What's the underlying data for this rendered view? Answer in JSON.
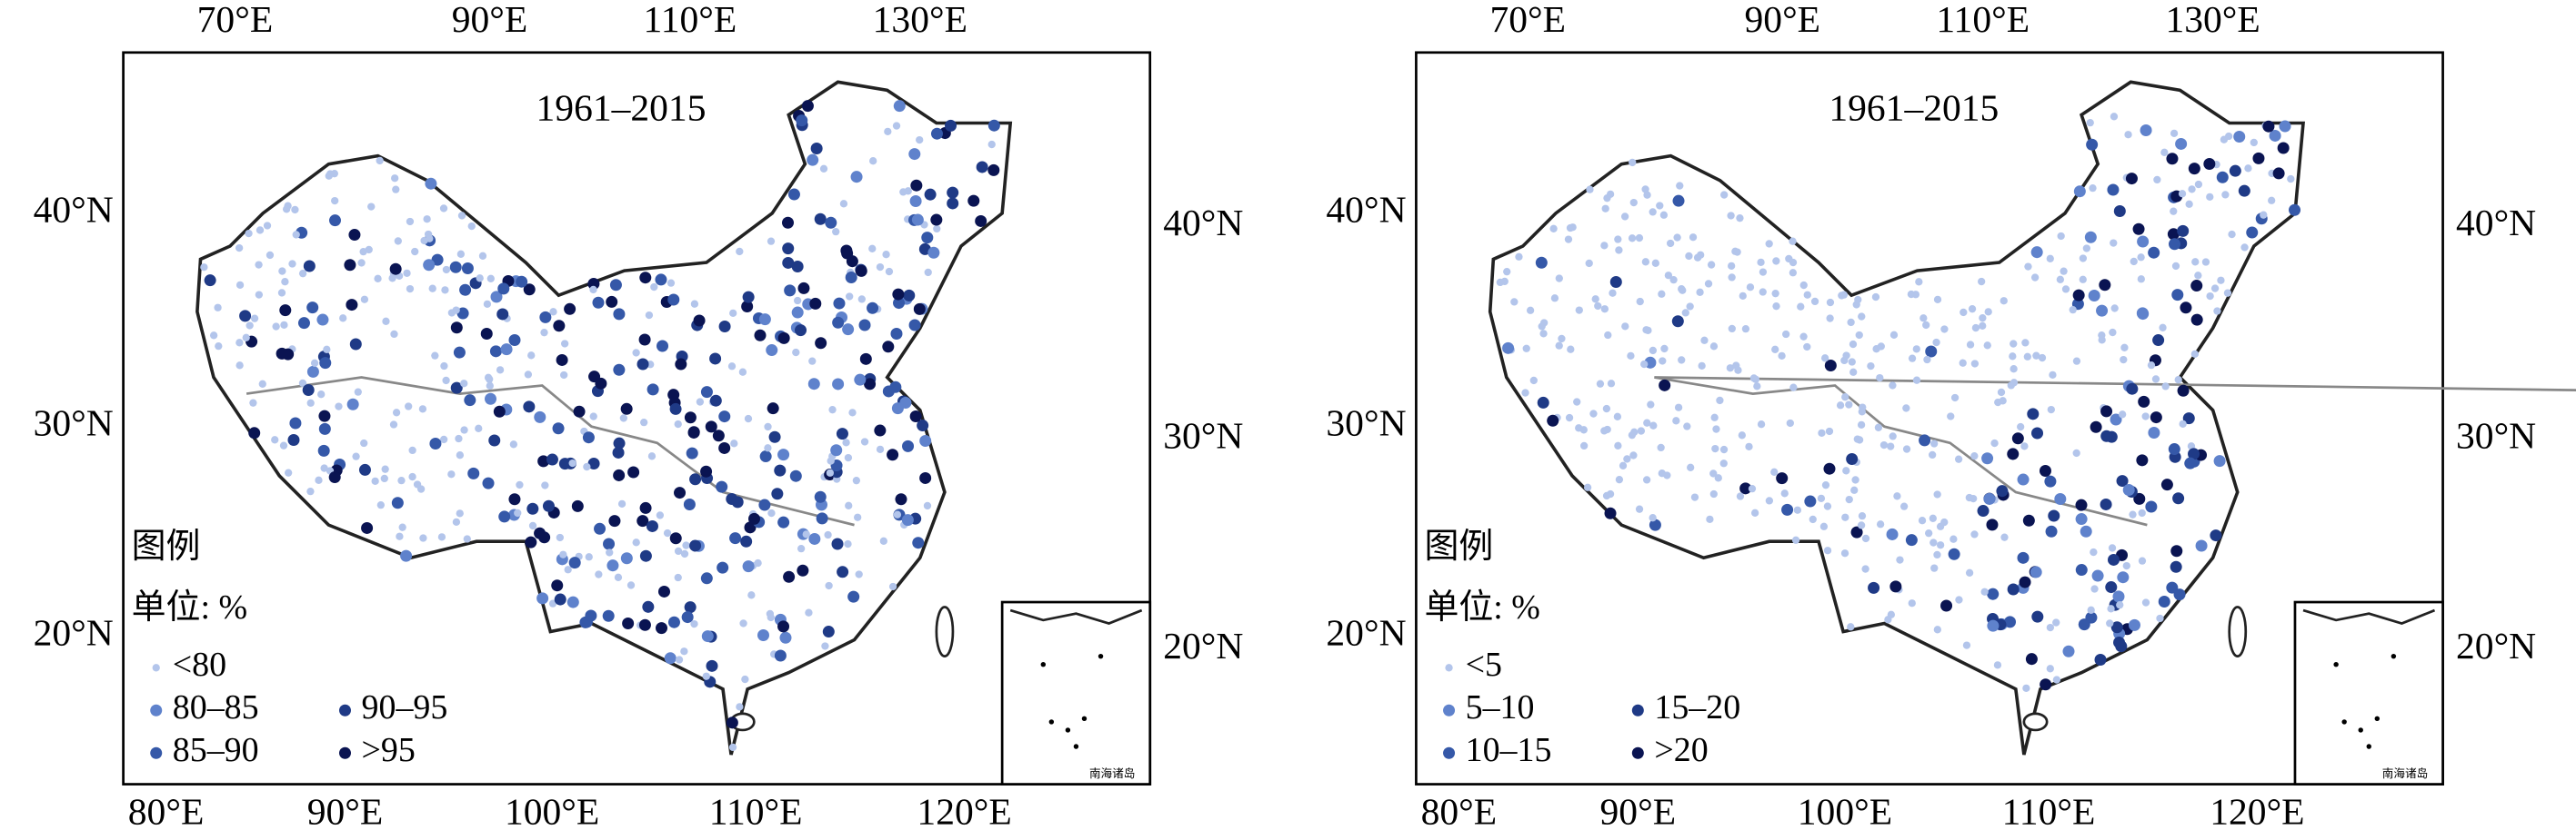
{
  "panels": [
    {
      "title": "1961–2015",
      "top_ticks": [
        "70°E",
        "90°E",
        "110°E",
        "130°E"
      ],
      "bottom_ticks": [
        "80°E",
        "90°E",
        "100°E",
        "110°E",
        "120°E"
      ],
      "left_ticks": [
        "40°N",
        "30°N",
        "20°N"
      ],
      "right_ticks": [
        "40°N",
        "30°N",
        "20°N"
      ],
      "legend": {
        "title": "图例",
        "unit": "单位: %",
        "items": [
          {
            "label": "<80",
            "color": "#b3c5eb"
          },
          {
            "label": "80–85",
            "color": "#5f82cc"
          },
          {
            "label": "85–90",
            "color": "#3558a8"
          },
          {
            "label": "90–95",
            "color": "#1f3a86"
          },
          {
            "label": ">95",
            "color": "#0a1452"
          }
        ]
      },
      "inset_label": "南海诸岛"
    },
    {
      "title": "1961–2015",
      "top_ticks": [
        "70°E",
        "90°E",
        "110°E",
        "130°E"
      ],
      "bottom_ticks": [
        "80°E",
        "90°E",
        "100°E",
        "110°E",
        "120°E"
      ],
      "left_ticks": [
        "40°N",
        "30°N",
        "20°N"
      ],
      "right_ticks": [
        "40°N",
        "30°N",
        "20°N"
      ],
      "legend": {
        "title": "图例",
        "unit": "单位: %",
        "items": [
          {
            "label": "<5",
            "color": "#b3c5eb"
          },
          {
            "label": "5–10",
            "color": "#5f82cc"
          },
          {
            "label": "10–15",
            "color": "#3558a8"
          },
          {
            "label": "15–20",
            "color": "#1f3a86"
          },
          {
            "label": ">20",
            "color": "#0a1452"
          }
        ]
      },
      "inset_label": "南海诸岛"
    }
  ]
}
